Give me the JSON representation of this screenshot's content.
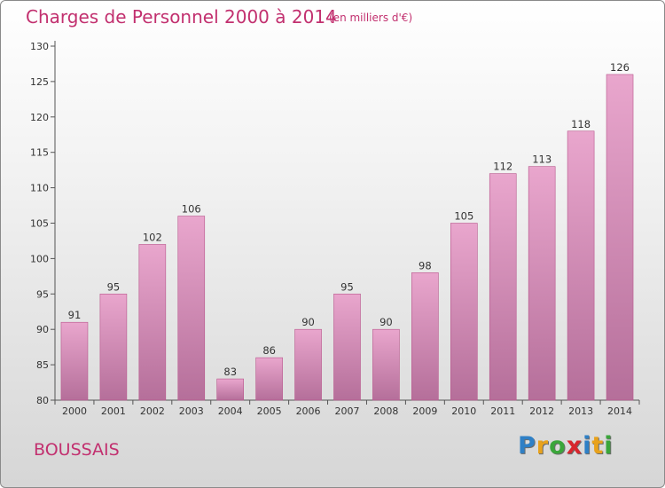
{
  "header": {
    "title": "Charges de Personnel 2000 à 2014",
    "subtitle": "(en milliers d'€)"
  },
  "footer": {
    "town": "BOUSSAIS",
    "logo_letters": [
      "P",
      "r",
      "o",
      "x",
      "i",
      "t",
      "i"
    ],
    "logo_colors": [
      "#2f80c6",
      "#e8a21c",
      "#3aa63a",
      "#d8262d",
      "#2f80c6",
      "#e8a21c",
      "#3aa63a"
    ]
  },
  "colors": {
    "bar_fill": "#d985b5",
    "bar_edge": "#b8568c",
    "text": "#c2306f"
  },
  "chart_data": {
    "type": "bar",
    "title": "Charges de Personnel 2000 à 2014",
    "subtitle": "(en milliers d'€)",
    "xlabel": "",
    "ylabel": "",
    "categories": [
      "2000",
      "2001",
      "2002",
      "2003",
      "2004",
      "2005",
      "2006",
      "2007",
      "2008",
      "2009",
      "2010",
      "2011",
      "2012",
      "2013",
      "2014"
    ],
    "values": [
      91,
      95,
      102,
      106,
      83,
      86,
      90,
      95,
      90,
      98,
      105,
      112,
      113,
      118,
      126
    ],
    "ylim": [
      80,
      130
    ],
    "yticks": [
      80,
      85,
      90,
      95,
      100,
      105,
      110,
      115,
      120,
      125,
      130
    ],
    "grid": false,
    "legend": "none"
  }
}
